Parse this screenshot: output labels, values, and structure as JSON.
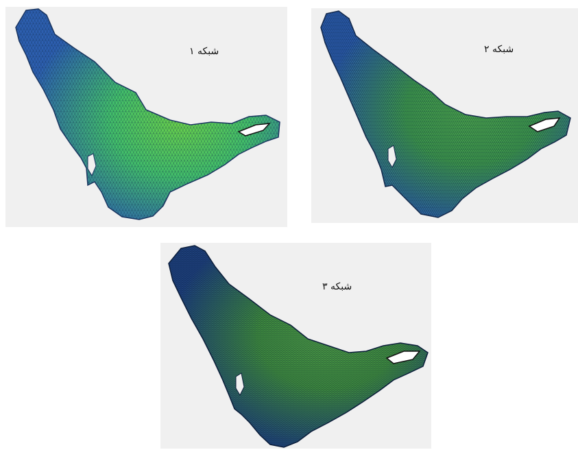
{
  "panels": [
    {
      "label": "شبکه ۱",
      "mesh_density": "coarse",
      "colors": {
        "edge": "#2d5fb0",
        "center": "#43c06a",
        "hot": "#6bd24a"
      }
    },
    {
      "label": "شبکه ۲",
      "mesh_density": "medium",
      "colors": {
        "edge": "#2a59a8",
        "center": "#3f9a4a",
        "hot": "#4da84a"
      }
    },
    {
      "label": "شبکه ۳",
      "mesh_density": "fine",
      "colors": {
        "edge": "#1d3f7a",
        "center": "#3e8a3e",
        "hot": "#4b9a44"
      }
    }
  ]
}
